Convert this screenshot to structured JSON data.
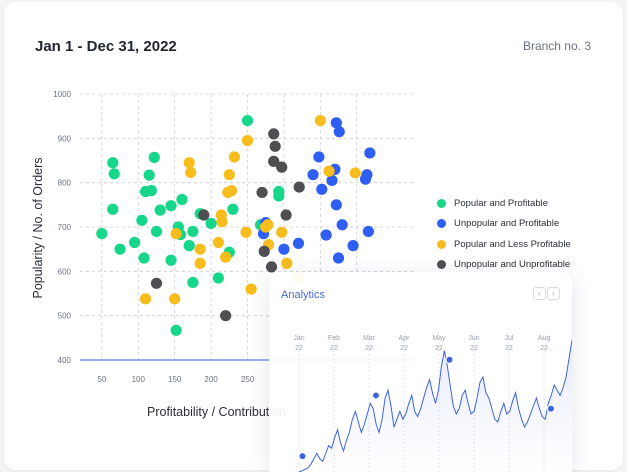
{
  "header": {
    "date_range": "Jan 1 - Dec 31, 2022",
    "branch": "Branch no. 3"
  },
  "legend": [
    {
      "label": "Popular and Profitable",
      "color": "#16d68a"
    },
    {
      "label": "Unpopular and Profitable",
      "color": "#2f5ff2"
    },
    {
      "label": "Popular and Less Profitable",
      "color": "#f7bd1d"
    },
    {
      "label": "Unpopular and Unprofitable",
      "color": "#4f4f52"
    }
  ],
  "analytics": {
    "title": "Analytics",
    "prev_icon": "chevron-left-icon",
    "next_icon": "chevron-right-icon",
    "month_labels": [
      {
        "month": "Jan",
        "year": "22"
      },
      {
        "month": "Feb",
        "year": "22"
      },
      {
        "month": "Mar",
        "year": "22"
      },
      {
        "month": "Apr",
        "year": "22"
      },
      {
        "month": "May",
        "year": "22"
      },
      {
        "month": "Jun",
        "year": "22"
      },
      {
        "month": "Jul",
        "year": "22"
      },
      {
        "month": "Aug",
        "year": "22"
      }
    ],
    "line_color": "#3d63dd"
  },
  "chart_data": [
    {
      "type": "scatter",
      "title": "",
      "xlabel": "Profitability / Contribution",
      "ylabel": "Popularity / No. of Orders",
      "xlim": [
        20,
        480
      ],
      "ylim": [
        400,
        1000
      ],
      "x_ticks": [
        50,
        100,
        150,
        200,
        250
      ],
      "y_ticks": [
        400,
        500,
        600,
        700,
        800,
        900,
        1000
      ],
      "grid": true,
      "legend_position": "right",
      "series": [
        {
          "name": "Popular and Profitable",
          "color": "#16d68a",
          "points": [
            [
              50,
              685
            ],
            [
              65,
              845
            ],
            [
              67,
              820
            ],
            [
              65,
              740
            ],
            [
              75,
              650
            ],
            [
              95,
              665
            ],
            [
              105,
              715
            ],
            [
              110,
              780
            ],
            [
              108,
              630
            ],
            [
              115,
              817
            ],
            [
              118,
              782
            ],
            [
              122,
              857
            ],
            [
              125,
              690
            ],
            [
              130,
              738
            ],
            [
              145,
              625
            ],
            [
              145,
              748
            ],
            [
              155,
              700
            ],
            [
              158,
              683
            ],
            [
              160,
              762
            ],
            [
              170,
              658
            ],
            [
              175,
              690
            ],
            [
              175,
              575
            ],
            [
              185,
              730
            ],
            [
              200,
              708
            ],
            [
              210,
              585
            ],
            [
              225,
              643
            ],
            [
              230,
              740
            ],
            [
              250,
              940
            ],
            [
              268,
              705
            ],
            [
              293,
              770
            ],
            [
              293,
              780
            ],
            [
              152,
              467
            ]
          ]
        },
        {
          "name": "Unpopular and Profitable",
          "color": "#2f5ff2",
          "points": [
            [
              272,
              685
            ],
            [
              275,
              710
            ],
            [
              300,
              650
            ],
            [
              320,
              663
            ],
            [
              340,
              818
            ],
            [
              348,
              858
            ],
            [
              352,
              785
            ],
            [
              358,
              682
            ],
            [
              366,
              805
            ],
            [
              370,
              830
            ],
            [
              372,
              935
            ],
            [
              376,
              915
            ],
            [
              372,
              750
            ],
            [
              380,
              705
            ],
            [
              375,
              630
            ],
            [
              395,
              658
            ],
            [
              412,
              808
            ],
            [
              414,
              818
            ],
            [
              418,
              867
            ],
            [
              416,
              690
            ]
          ]
        },
        {
          "name": "Popular and Less Profitable",
          "color": "#f7bd1d",
          "points": [
            [
              110,
              538
            ],
            [
              150,
              538
            ],
            [
              152,
              685
            ],
            [
              170,
              845
            ],
            [
              172,
              823
            ],
            [
              185,
              650
            ],
            [
              185,
              618
            ],
            [
              210,
              665
            ],
            [
              214,
              727
            ],
            [
              215,
              712
            ],
            [
              220,
              632
            ],
            [
              223,
              778
            ],
            [
              225,
              818
            ],
            [
              228,
              782
            ],
            [
              232,
              858
            ],
            [
              248,
              688
            ],
            [
              250,
              895
            ],
            [
              255,
              560
            ],
            [
              275,
              700
            ],
            [
              278,
              705
            ],
            [
              279,
              660
            ],
            [
              297,
              688
            ],
            [
              304,
              618
            ],
            [
              320,
              585
            ],
            [
              350,
              940
            ],
            [
              362,
              826
            ],
            [
              398,
              822
            ]
          ]
        },
        {
          "name": "Unpopular and Unprofitable",
          "color": "#4f4f52",
          "points": [
            [
              125,
              573
            ],
            [
              190,
              727
            ],
            [
              220,
              500
            ],
            [
              270,
              778
            ],
            [
              273,
              645
            ],
            [
              283,
              610
            ],
            [
              286,
              910
            ],
            [
              288,
              882
            ],
            [
              286,
              848
            ],
            [
              297,
              835
            ],
            [
              303,
              727
            ],
            [
              321,
              790
            ]
          ]
        }
      ]
    },
    {
      "type": "line",
      "title": "Analytics",
      "x_labels": [
        "Jan 22",
        "Feb 22",
        "Mar 22",
        "Apr 22",
        "May 22",
        "Jun 22",
        "Jul 22",
        "Aug 22"
      ],
      "x_range": [
        0,
        7.8
      ],
      "y_range": [
        0,
        100
      ],
      "grid": true,
      "values": [
        0,
        1,
        2,
        3,
        6,
        10,
        14,
        10,
        8,
        14,
        20,
        18,
        26,
        32,
        22,
        16,
        24,
        30,
        40,
        46,
        38,
        30,
        36,
        44,
        52,
        48,
        36,
        30,
        40,
        56,
        62,
        50,
        34,
        40,
        46,
        40,
        44,
        52,
        58,
        46,
        42,
        48,
        56,
        64,
        70,
        60,
        52,
        62,
        80,
        92,
        80,
        65,
        50,
        44,
        48,
        58,
        62,
        52,
        44,
        46,
        56,
        68,
        72,
        60,
        56,
        48,
        40,
        38,
        46,
        52,
        44,
        46,
        54,
        60,
        48,
        40,
        34,
        38,
        44,
        50,
        56,
        48,
        42,
        40,
        52,
        58,
        66,
        62,
        58,
        64,
        72,
        86,
        100
      ],
      "markers": [
        [
          0.1,
          12
        ],
        [
          2.2,
          58
        ],
        [
          4.3,
          85
        ],
        [
          7.2,
          48
        ]
      ]
    }
  ]
}
